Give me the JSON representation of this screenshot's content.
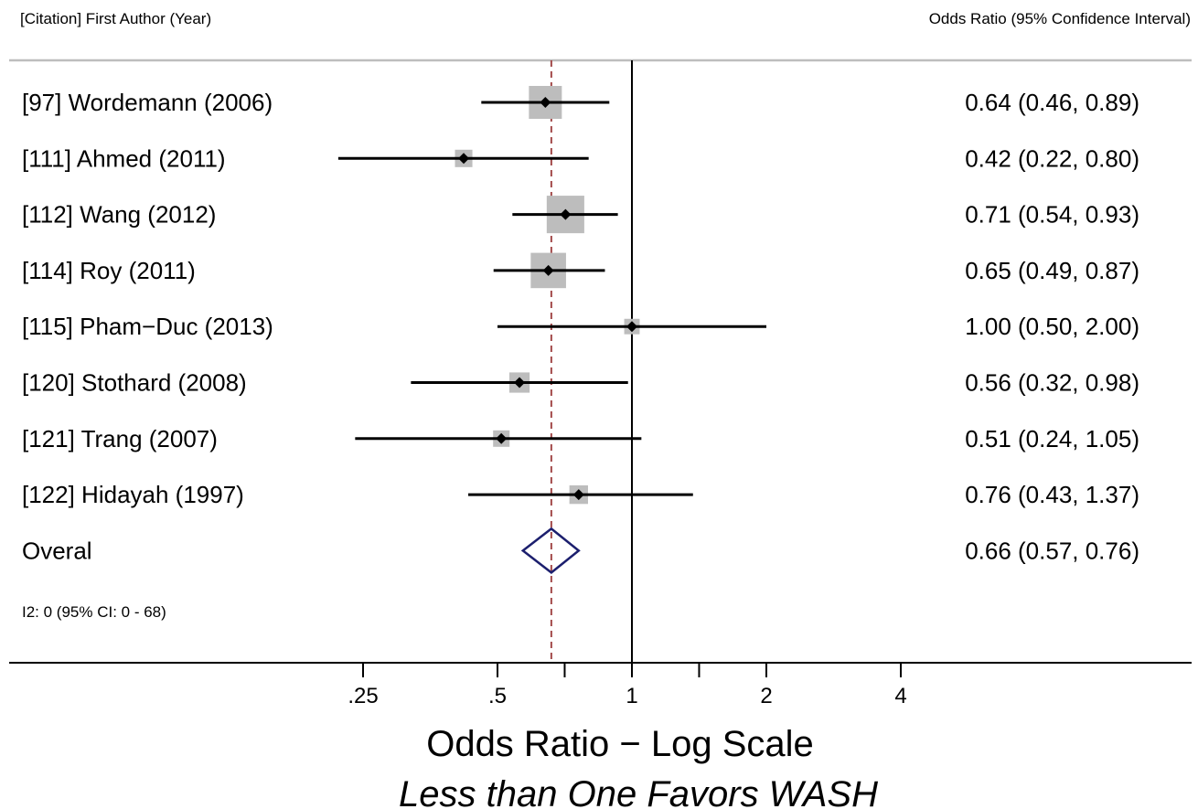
{
  "header": {
    "left": "[Citation] First Author (Year)",
    "right": "Odds Ratio (95% Confidence Interval)"
  },
  "chart_data": {
    "type": "forest",
    "x_scale": "log",
    "xlim": [
      0.125,
      8
    ],
    "reference_line": 1,
    "pooled_line": 0.66,
    "xlabel": "Odds Ratio − Log Scale",
    "subtitle": "Less than One Favors WASH",
    "ticks": [
      {
        "value": 0.25,
        "label": ".25"
      },
      {
        "value": 0.5,
        "label": ".5"
      },
      {
        "value": 0.707,
        "label": ""
      },
      {
        "value": 1,
        "label": "1"
      },
      {
        "value": 1.414,
        "label": ""
      },
      {
        "value": 2,
        "label": "2"
      },
      {
        "value": 4,
        "label": "4"
      }
    ],
    "studies": [
      {
        "label": "[97] Wordemann (2006)",
        "or": 0.64,
        "lo": 0.46,
        "hi": 0.89,
        "weight": 1.0,
        "ci_text": "0.64 (0.46, 0.89)"
      },
      {
        "label": "[111] Ahmed (2011)",
        "or": 0.42,
        "lo": 0.22,
        "hi": 0.8,
        "weight": 0.28,
        "ci_text": "0.42 (0.22, 0.80)"
      },
      {
        "label": "[112] Wang (2012)",
        "or": 0.71,
        "lo": 0.54,
        "hi": 0.93,
        "weight": 1.3,
        "ci_text": "0.71 (0.54, 0.93)"
      },
      {
        "label": "[114] Roy (2011)",
        "or": 0.65,
        "lo": 0.49,
        "hi": 0.87,
        "weight": 1.15,
        "ci_text": "0.65 (0.49, 0.87)"
      },
      {
        "label": "[115] Pham−Duc (2013)",
        "or": 1.0,
        "lo": 0.5,
        "hi": 2.0,
        "weight": 0.22,
        "ci_text": "1.00 (0.50, 2.00)"
      },
      {
        "label": "[120] Stothard (2008)",
        "or": 0.56,
        "lo": 0.32,
        "hi": 0.98,
        "weight": 0.38,
        "ci_text": "0.56 (0.32, 0.98)"
      },
      {
        "label": "[121] Trang (2007)",
        "or": 0.51,
        "lo": 0.24,
        "hi": 1.05,
        "weight": 0.25,
        "ci_text": "0.51 (0.24, 1.05)"
      },
      {
        "label": "[122] Hidayah (1997)",
        "or": 0.76,
        "lo": 0.43,
        "hi": 1.37,
        "weight": 0.32,
        "ci_text": "0.76 (0.43, 1.37)"
      }
    ],
    "overall": {
      "label": "Overal",
      "or": 0.66,
      "lo": 0.57,
      "hi": 0.76,
      "ci_text": "0.66 (0.57, 0.76)"
    },
    "heterogeneity": "I2: 0 (95% CI: 0 - 68)",
    "colors": {
      "marker": "#000000",
      "box": "#bdbdbd",
      "diamond": "#1c1f6e",
      "pooled_line": "#a34a4a",
      "header_rule": "#bdbdbd"
    }
  }
}
